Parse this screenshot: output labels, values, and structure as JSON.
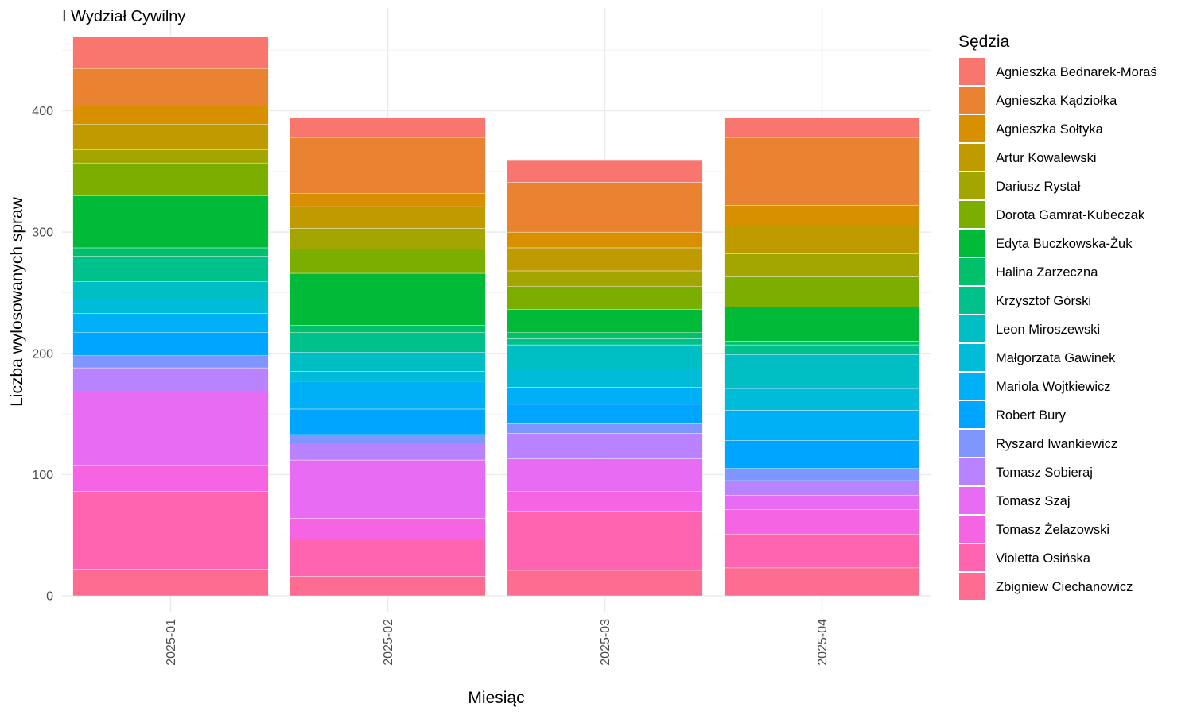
{
  "chart_data": {
    "type": "bar",
    "stacked": true,
    "title": "I Wydział Cywilny",
    "xlabel": "Miesiąc",
    "ylabel": "Liczba wylosowanych spraw",
    "ylim": [
      0,
      480
    ],
    "yticks": [
      0,
      100,
      200,
      300,
      400
    ],
    "grid": true,
    "legend_title": "Sędzia",
    "legend_position": "right",
    "categories": [
      "2025-01",
      "2025-02",
      "2025-03",
      "2025-04"
    ],
    "series": [
      {
        "name": "Agnieszka Bednarek-Moraś",
        "color": "#F8766D",
        "values": [
          26,
          16,
          18,
          16
        ]
      },
      {
        "name": "Agnieszka Kądziołka",
        "color": "#EA8331",
        "values": [
          31,
          46,
          41,
          56
        ]
      },
      {
        "name": "Agnieszka Sołtyka",
        "color": "#D89000",
        "values": [
          15,
          11,
          13,
          17
        ]
      },
      {
        "name": "Artur Kowalewski",
        "color": "#C09B00",
        "values": [
          21,
          18,
          19,
          23
        ]
      },
      {
        "name": "Dariusz Rystał",
        "color": "#A3A500",
        "values": [
          11,
          17,
          13,
          19
        ]
      },
      {
        "name": "Dorota Gamrat-Kubeczak",
        "color": "#7CAE00",
        "values": [
          27,
          20,
          19,
          25
        ]
      },
      {
        "name": "Edyta Buczkowska-Żuk",
        "color": "#00BA38",
        "values": [
          43,
          43,
          19,
          28
        ]
      },
      {
        "name": "Halina Zarzeczna",
        "color": "#00C06B",
        "values": [
          7,
          6,
          5,
          3
        ]
      },
      {
        "name": "Krzysztof Górski",
        "color": "#00C08B",
        "values": [
          21,
          16,
          5,
          8
        ]
      },
      {
        "name": "Leon Miroszewski",
        "color": "#00BFC4",
        "values": [
          15,
          16,
          20,
          28
        ]
      },
      {
        "name": "Małgorzata Gawinek",
        "color": "#00BCD8",
        "values": [
          11,
          8,
          15,
          18
        ]
      },
      {
        "name": "Mariola Wojtkiewicz",
        "color": "#00B0F6",
        "values": [
          16,
          23,
          14,
          25
        ]
      },
      {
        "name": "Robert Bury",
        "color": "#00A5FF",
        "values": [
          19,
          21,
          16,
          23
        ]
      },
      {
        "name": "Ryszard Iwankiewicz",
        "color": "#7F96FF",
        "values": [
          10,
          7,
          8,
          10
        ]
      },
      {
        "name": "Tomasz Sobieraj",
        "color": "#B983FF",
        "values": [
          20,
          14,
          21,
          12
        ]
      },
      {
        "name": "Tomasz Szaj",
        "color": "#E76BF3",
        "values": [
          60,
          48,
          27,
          12
        ]
      },
      {
        "name": "Tomasz Żelazowski",
        "color": "#F564E3",
        "values": [
          22,
          17,
          16,
          20
        ]
      },
      {
        "name": "Violetta Osińska",
        "color": "#FF64B0",
        "values": [
          64,
          31,
          49,
          28
        ]
      },
      {
        "name": "Zbigniew Ciechanowicz",
        "color": "#FF6C91",
        "values": [
          22,
          16,
          21,
          23
        ]
      }
    ]
  }
}
